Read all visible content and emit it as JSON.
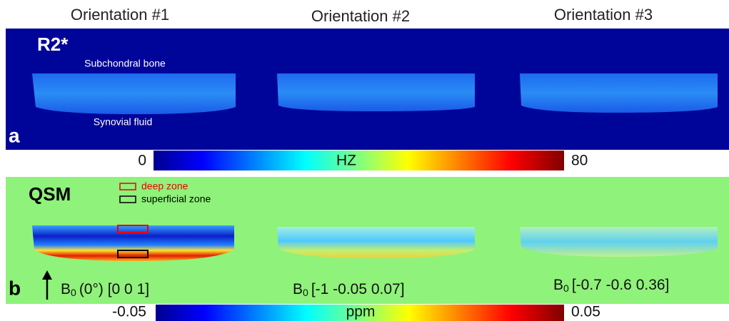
{
  "header": {
    "columns": [
      "Orientation #1",
      "Orientation #2",
      "Orientation #3"
    ]
  },
  "panel_a": {
    "letter": "a",
    "title": "R2*",
    "annotations": [
      "Subchondral bone",
      "Synovial fluid"
    ],
    "colorbar": {
      "min": 0,
      "max": 80,
      "unit": "HZ"
    }
  },
  "panel_b": {
    "letter": "b",
    "title": "QSM",
    "legend": [
      "deep zone",
      "superficial zone"
    ],
    "b0_labels": [
      {
        "symbol": "B",
        "subscript": "0",
        "text": "(0°) [0 0 1]"
      },
      {
        "symbol": "B",
        "subscript": "0",
        "text": "[-1 -0.05 0.07]"
      },
      {
        "symbol": "B",
        "subscript": "0",
        "text": "[-0.7 -0.6  0.36]"
      }
    ],
    "colorbar": {
      "min": -0.05,
      "max": 0.05,
      "unit": "ppm"
    }
  }
}
